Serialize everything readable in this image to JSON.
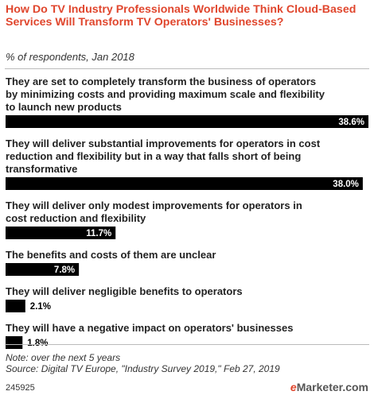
{
  "header": {
    "title": "How Do TV Industry Professionals Worldwide Think Cloud-Based Services Will Transform TV Operators' Businesses?",
    "subtitle": "% of respondents, Jan 2018"
  },
  "footer": {
    "note": "Note: over the next 5 years",
    "source": "Source: Digital TV Europe, \"Industry Survey 2019,\" Feb 27, 2019",
    "chart_id": "245925",
    "brand_e": "e",
    "brand_name": "Marketer",
    "brand_suffix": ".com"
  },
  "colors": {
    "title": "#e0462d",
    "bar": "#000000",
    "value_inside": "#ffffff",
    "value_outside": "#000000"
  },
  "chart_data": {
    "type": "bar",
    "orientation": "horizontal",
    "categories": [
      "They are set to completely transform the business of operators by minimizing costs and providing maximum scale and flexibility to launch new products",
      "They will deliver substantial improvements for operators in cost reduction and flexibility but in a way that falls short of being transformative",
      "They will deliver only modest improvements for operators in cost reduction and flexibility",
      "The benefits and costs of them are unclear",
      "They will deliver negligible benefits to operators",
      "They will have a negative impact on operators' businesses"
    ],
    "category_lines": [
      [
        "They are set to completely transform the business of operators",
        "by minimizing costs and providing maximum scale and flexibility",
        "to launch new products"
      ],
      [
        "They will deliver substantial improvements for operators in cost",
        "reduction and flexibility but in a way that falls short of being",
        "transformative"
      ],
      [
        "They will deliver only modest improvements for operators in",
        "cost reduction and flexibility"
      ],
      [
        "The benefits and costs of them are unclear"
      ],
      [
        "They will deliver negligible benefits to operators"
      ],
      [
        "They will have a negative impact on operators' businesses"
      ]
    ],
    "values": [
      38.6,
      38.0,
      11.7,
      7.8,
      2.1,
      1.8
    ],
    "value_labels": [
      "38.6%",
      "38.0%",
      "11.7%",
      "7.8%",
      "2.1%",
      "1.8%"
    ],
    "xlim": [
      0,
      38.6
    ]
  }
}
